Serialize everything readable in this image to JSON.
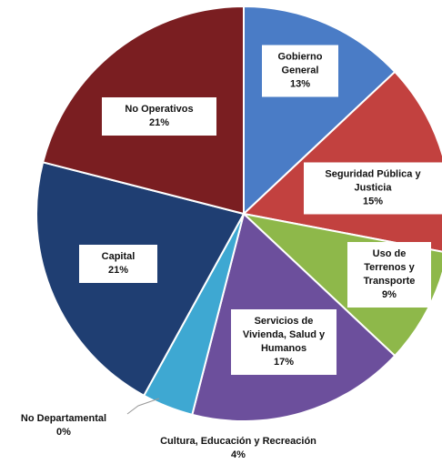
{
  "chart_data": {
    "type": "pie",
    "categories": [
      "Gobierno General",
      "Seguridad Pública y Justicia",
      "Uso de Terrenos y Transporte",
      "Servicios de Vivienda, Salud y Humanos",
      "Cultura, Educación y Recreación",
      "No Departamental",
      "Capital",
      "No Operativos"
    ],
    "values": [
      13,
      15,
      9,
      17,
      4,
      0,
      21,
      21
    ],
    "value_labels": [
      "13%",
      "15%",
      "9%",
      "17%",
      "4%",
      "0%",
      "21%",
      "21%"
    ],
    "colors": [
      "#4a7cc6",
      "#c2413f",
      "#8eb84a",
      "#6c4f9c",
      "#3ea8d2",
      "#999999",
      "#1f3e72",
      "#7a1e21"
    ]
  }
}
